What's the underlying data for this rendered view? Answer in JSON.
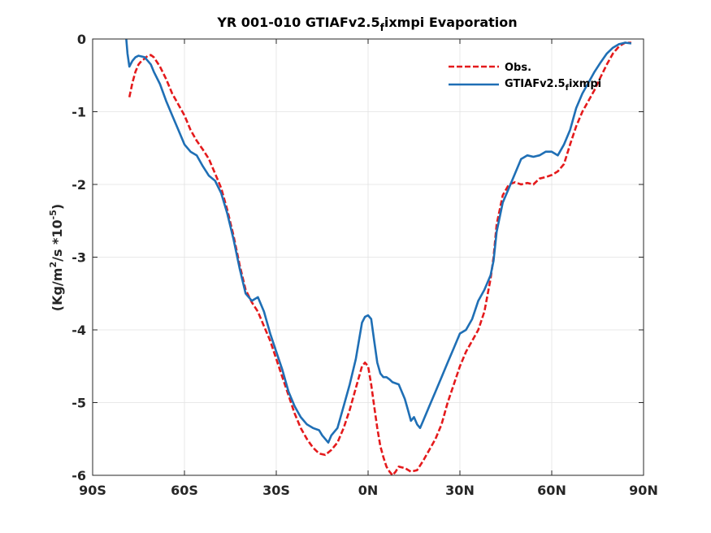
{
  "chart_data": {
    "type": "line",
    "title": "YR 001-010 GTIAFv2.5_fixmpi Evaporation",
    "title_parts": {
      "main": "YR 001-010 GTIAFv2.5",
      "sub": "f",
      "tail": "ixmpi Evaporation"
    },
    "xlabel": "",
    "ylabel": "(Kg/m^2/s *10^-5)",
    "ylabel_parts": {
      "a": "(Kg/m",
      "sup1": "2",
      "b": "/s *10",
      "sup2": "-5",
      "c": ")"
    },
    "xlim": [
      -90,
      90
    ],
    "ylim": [
      -6,
      0
    ],
    "grid": true,
    "legend_position": "top-right",
    "x_ticks": [
      {
        "value": -90,
        "label": "90S"
      },
      {
        "value": -60,
        "label": "60S"
      },
      {
        "value": -30,
        "label": "30S"
      },
      {
        "value": 0,
        "label": "0N"
      },
      {
        "value": 30,
        "label": "30N"
      },
      {
        "value": 60,
        "label": "60N"
      },
      {
        "value": 90,
        "label": "90N"
      }
    ],
    "y_ticks": [
      {
        "value": 0,
        "label": "0"
      },
      {
        "value": -1,
        "label": "-1"
      },
      {
        "value": -2,
        "label": "-2"
      },
      {
        "value": -3,
        "label": "-3"
      },
      {
        "value": -4,
        "label": "-4"
      },
      {
        "value": -5,
        "label": "-5"
      },
      {
        "value": -6,
        "label": "-6"
      }
    ],
    "series": [
      {
        "name": "Obs.",
        "legend_label": "Obs.",
        "color": "#e41a1c",
        "style": "dashed",
        "x": [
          -78,
          -77,
          -76,
          -75,
          -74,
          -73,
          -72,
          -71,
          -70,
          -68,
          -66,
          -64,
          -62,
          -60,
          -58,
          -56,
          -54,
          -52,
          -50,
          -48,
          -46,
          -44,
          -42,
          -40,
          -38,
          -36,
          -34,
          -32,
          -30,
          -28,
          -26,
          -24,
          -22,
          -20,
          -18,
          -16,
          -14,
          -12,
          -10,
          -8,
          -6,
          -4,
          -2,
          -1,
          0,
          1,
          2,
          3,
          4,
          5,
          6,
          7,
          8,
          9,
          10,
          12,
          14,
          16,
          18,
          20,
          22,
          24,
          26,
          28,
          30,
          32,
          34,
          36,
          38,
          40,
          41,
          42,
          44,
          46,
          48,
          50,
          52,
          54,
          56,
          58,
          60,
          62,
          64,
          66,
          68,
          70,
          72,
          74,
          76,
          78,
          80,
          82,
          84,
          86
        ],
        "y": [
          -0.8,
          -0.6,
          -0.45,
          -0.35,
          -0.3,
          -0.27,
          -0.23,
          -0.22,
          -0.25,
          -0.38,
          -0.55,
          -0.75,
          -0.9,
          -1.05,
          -1.25,
          -1.4,
          -1.52,
          -1.65,
          -1.85,
          -2.05,
          -2.35,
          -2.7,
          -3.1,
          -3.45,
          -3.62,
          -3.75,
          -3.95,
          -4.15,
          -4.4,
          -4.65,
          -4.9,
          -5.15,
          -5.35,
          -5.5,
          -5.62,
          -5.7,
          -5.72,
          -5.65,
          -5.55,
          -5.35,
          -5.1,
          -4.8,
          -4.5,
          -4.45,
          -4.5,
          -4.75,
          -5.05,
          -5.35,
          -5.6,
          -5.75,
          -5.88,
          -5.95,
          -6.0,
          -5.95,
          -5.88,
          -5.9,
          -5.95,
          -5.93,
          -5.8,
          -5.65,
          -5.5,
          -5.3,
          -5.0,
          -4.75,
          -4.5,
          -4.3,
          -4.15,
          -4.0,
          -3.75,
          -3.3,
          -3.0,
          -2.55,
          -2.15,
          -2.0,
          -1.97,
          -2.0,
          -1.98,
          -2.0,
          -1.92,
          -1.9,
          -1.87,
          -1.82,
          -1.72,
          -1.45,
          -1.2,
          -1.0,
          -0.85,
          -0.7,
          -0.52,
          -0.35,
          -0.2,
          -0.1,
          -0.05,
          -0.05
        ]
      },
      {
        "name": "GTIAFv2.5_fixmpi",
        "legend_label": "GTIAFv2.5_fixmpi",
        "legend_parts": {
          "main": "GTIAFv2.5",
          "sub": "f",
          "tail": "ixmpi"
        },
        "color": "#1f6fb5",
        "style": "solid",
        "x": [
          -79,
          -78.6,
          -78,
          -77,
          -76,
          -75,
          -74,
          -73,
          -72,
          -71,
          -70,
          -68,
          -66,
          -64,
          -62,
          -60,
          -58,
          -56,
          -54,
          -52,
          -50,
          -48,
          -46,
          -44,
          -42,
          -40,
          -38,
          -36,
          -34,
          -32,
          -30,
          -28,
          -26,
          -24,
          -22,
          -20,
          -18,
          -16,
          -15,
          -14,
          -13,
          -12,
          -10,
          -8,
          -6,
          -4,
          -3,
          -2,
          -1,
          0,
          1,
          2,
          3,
          4,
          5,
          6,
          7,
          8,
          10,
          12,
          13,
          14,
          15,
          16,
          17,
          18,
          20,
          22,
          24,
          26,
          28,
          30,
          32,
          34,
          36,
          38,
          40,
          41,
          42,
          44,
          46,
          48,
          50,
          52,
          54,
          56,
          58,
          60,
          62,
          64,
          66,
          68,
          70,
          72,
          74,
          76,
          78,
          80,
          82,
          84,
          86
        ],
        "y": [
          0.0,
          -0.2,
          -0.38,
          -0.3,
          -0.25,
          -0.23,
          -0.24,
          -0.25,
          -0.3,
          -0.35,
          -0.45,
          -0.62,
          -0.85,
          -1.05,
          -1.25,
          -1.45,
          -1.55,
          -1.6,
          -1.75,
          -1.88,
          -1.95,
          -2.12,
          -2.4,
          -2.75,
          -3.15,
          -3.5,
          -3.6,
          -3.55,
          -3.75,
          -4.05,
          -4.3,
          -4.55,
          -4.85,
          -5.05,
          -5.2,
          -5.3,
          -5.35,
          -5.38,
          -5.45,
          -5.5,
          -5.55,
          -5.45,
          -5.35,
          -5.05,
          -4.75,
          -4.4,
          -4.15,
          -3.9,
          -3.82,
          -3.8,
          -3.85,
          -4.15,
          -4.45,
          -4.6,
          -4.65,
          -4.65,
          -4.68,
          -4.72,
          -4.75,
          -4.95,
          -5.1,
          -5.25,
          -5.2,
          -5.3,
          -5.35,
          -5.25,
          -5.05,
          -4.85,
          -4.65,
          -4.45,
          -4.25,
          -4.05,
          -4.0,
          -3.85,
          -3.6,
          -3.45,
          -3.25,
          -3.05,
          -2.65,
          -2.25,
          -2.05,
          -1.85,
          -1.65,
          -1.6,
          -1.62,
          -1.6,
          -1.55,
          -1.55,
          -1.6,
          -1.45,
          -1.25,
          -0.95,
          -0.75,
          -0.6,
          -0.45,
          -0.32,
          -0.2,
          -0.12,
          -0.07,
          -0.05,
          -0.06
        ]
      }
    ]
  }
}
